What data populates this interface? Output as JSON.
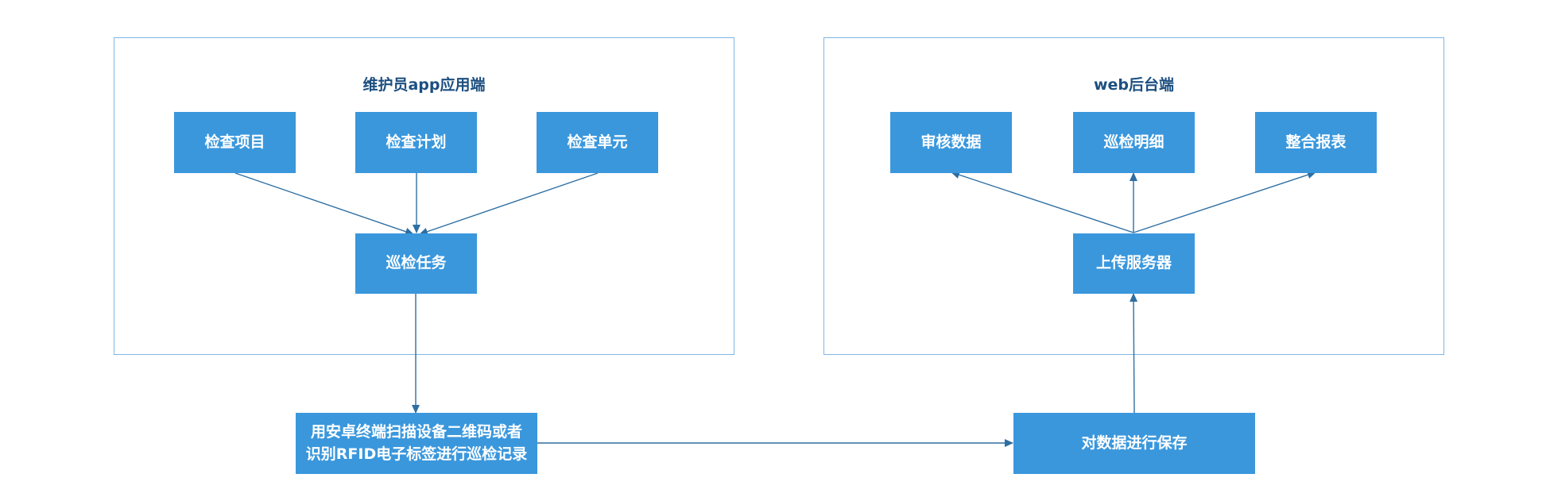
{
  "groups": {
    "app": {
      "title": "维护员app应用端"
    },
    "web": {
      "title": "web后台端"
    }
  },
  "nodes": {
    "check_item": "检查项目",
    "check_plan": "检查计划",
    "check_unit": "检查单元",
    "patrol_task": "巡检任务",
    "scan_line1": "用安卓终端扫描设备二维码或者",
    "scan_line2": "识别RFID电子标签进行巡检记录",
    "save_data": "对数据进行保存",
    "upload_server": "上传服务器",
    "review_data": "审核数据",
    "patrol_detail": "巡检明细",
    "merge_report": "整合报表"
  },
  "colors": {
    "node_fill": "#3a97dc",
    "node_text": "#ffffff",
    "group_border": "#7fb6e6",
    "group_title": "#1c4f80",
    "edge": "#2e6fa3"
  }
}
